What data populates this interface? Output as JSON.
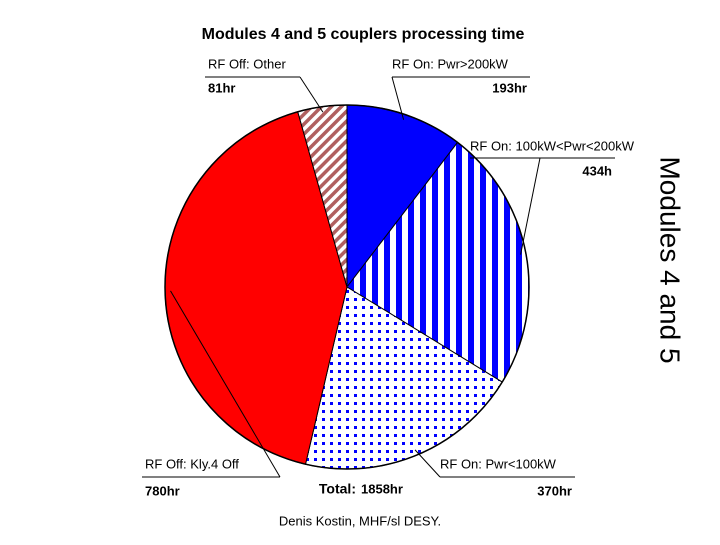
{
  "chart_data": {
    "type": "pie",
    "title": "Modules 4 and 5 couplers processing time",
    "side_title": "Modules 4 and 5",
    "footer": "Denis Kostin, MHF/sl DESY.",
    "categories": [
      "RF On: Pwr>200kW",
      "RF On: 100kW<Pwr<200kW",
      "RF On: Pwr<100kW",
      "RF Off: Kly.4 Off",
      "RF Off: Other"
    ],
    "values": [
      193,
      434,
      370,
      780,
      81
    ],
    "value_labels": [
      "193hr",
      "434h",
      "370hr",
      "780hr",
      "81hr"
    ],
    "fills": [
      "solid",
      "stripes",
      "dots",
      "solid",
      "hatch"
    ],
    "colors": [
      "#0000ff",
      "#0000ff",
      "#0000ff",
      "#ff0000",
      "#b06060"
    ],
    "total": {
      "label": "Total:",
      "value": 1858,
      "value_label": "1858hr"
    }
  }
}
